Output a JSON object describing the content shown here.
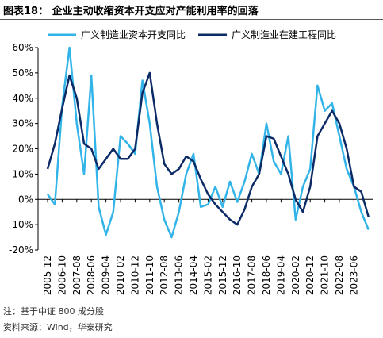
{
  "chart_data": {
    "type": "line",
    "title": "图表18：  企业主动收缩资本开支应对产能利用率的回落",
    "notes": [
      "注：基于中证 800 成分股",
      "资料来源：Wind，华泰研究"
    ],
    "categories": [
      "2005-12",
      null,
      "2006-10",
      null,
      "2007-08",
      null,
      "2008-06",
      null,
      "2009-04",
      null,
      "2010-02",
      null,
      "2010-12",
      null,
      "2011-10",
      null,
      "2012-08",
      null,
      "2013-06",
      null,
      "2014-04",
      null,
      "2015-02",
      null,
      "2015-12",
      null,
      "2016-10",
      null,
      "2017-08",
      null,
      "2018-06",
      null,
      "2019-04",
      null,
      "2020-02",
      null,
      "2020-12",
      null,
      "2021-10",
      null,
      "2022-08",
      null,
      "2023-06",
      null,
      null
    ],
    "series": [
      {
        "name": "广义制造业资本开支同比",
        "color": "#33b4e8",
        "values": [
          2,
          -2,
          37,
          60,
          30,
          10,
          49,
          -3,
          -14,
          -5,
          25,
          22,
          18,
          47,
          30,
          5,
          -8,
          -15,
          -5,
          10,
          18,
          -3,
          -2,
          5,
          -3,
          7,
          -1,
          7,
          18,
          10,
          30,
          15,
          10,
          25,
          -8,
          5,
          12,
          45,
          35,
          38,
          25,
          12,
          5,
          -5,
          -12
        ]
      },
      {
        "name": "广义制造业在建工程同比",
        "color": "#0b2a66",
        "values": [
          12,
          22,
          36,
          49,
          40,
          22,
          20,
          12,
          16,
          20,
          16,
          16,
          20,
          42,
          50,
          30,
          14,
          10,
          12,
          17,
          15,
          8,
          2,
          -2,
          -5,
          -8,
          -10,
          -4,
          5,
          10,
          25,
          24,
          17,
          10,
          0,
          -5,
          5,
          25,
          30,
          35,
          30,
          20,
          5,
          3,
          -7
        ]
      }
    ],
    "ylim": [
      -20,
      60
    ],
    "yticks": [
      {
        "value": -20,
        "label": "-20%"
      },
      {
        "value": -10,
        "label": "-10%"
      },
      {
        "value": 0,
        "label": "0%"
      },
      {
        "value": 10,
        "label": "10%"
      },
      {
        "value": 20,
        "label": "20%"
      },
      {
        "value": 30,
        "label": "30%"
      },
      {
        "value": 40,
        "label": "40%"
      },
      {
        "value": 50,
        "label": "50%"
      },
      {
        "value": 60,
        "label": "60%"
      }
    ],
    "grid": false
  }
}
